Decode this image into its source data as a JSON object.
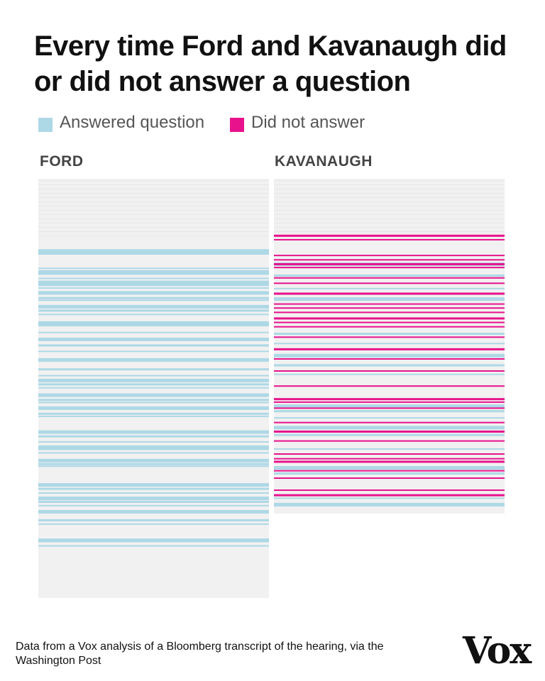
{
  "title": "Every time Ford and Kavanaugh did or did not answer a question",
  "legend": {
    "answered": "Answered question",
    "not_answered": "Did not answer"
  },
  "colors": {
    "answered": "#add8e6",
    "not_answered": "#e8128c",
    "panel_bg": "#f1f1f1",
    "filler": "#e2e2e2"
  },
  "panels": {
    "ford": "FORD",
    "kavanaugh": "KAVANAUGH"
  },
  "source": "Data from a Vox analysis of a Bloomberg transcript of the hearing, via the Washington Post",
  "logo": "Vox",
  "chart_data": [
    {
      "type": "heatmap",
      "title": "FORD",
      "series": [
        {
          "name": "Answered question",
          "values": []
        },
        {
          "name": "Did not answer",
          "values": []
        }
      ],
      "answered_rows": [
        0.168,
        0.176,
        0.212,
        0.218,
        0.224,
        0.236,
        0.243,
        0.251,
        0.259,
        0.268,
        0.282,
        0.288,
        0.301,
        0.312,
        0.322,
        0.34,
        0.347,
        0.365,
        0.379,
        0.395,
        0.41,
        0.428,
        0.452,
        0.468,
        0.477,
        0.488,
        0.497,
        0.512,
        0.525,
        0.532,
        0.543,
        0.558,
        0.565,
        0.6,
        0.612,
        0.626,
        0.636,
        0.642,
        0.652,
        0.668,
        0.678,
        0.684,
        0.726,
        0.737,
        0.748,
        0.758,
        0.768,
        0.778,
        0.79,
        0.812,
        0.822,
        0.858,
        0.862,
        0.874
      ],
      "not_answered_rows": []
    },
    {
      "type": "heatmap",
      "title": "KAVANAUGH",
      "series": [
        {
          "name": "Answered question",
          "values": []
        },
        {
          "name": "Did not answer",
          "values": []
        }
      ],
      "answered_rows": [
        0.25,
        0.286,
        0.326,
        0.354,
        0.46,
        0.49,
        0.523,
        0.554,
        0.582,
        0.674,
        0.691,
        0.712,
        0.738,
        0.762,
        0.805,
        0.858,
        0.877,
        0.952,
        0.968
      ],
      "not_answered_rows": [
        0.167,
        0.18,
        0.227,
        0.24,
        0.252,
        0.263,
        0.294,
        0.31,
        0.34,
        0.372,
        0.384,
        0.397,
        0.414,
        0.427,
        0.44,
        0.471,
        0.506,
        0.536,
        0.572,
        0.617,
        0.655,
        0.665,
        0.683,
        0.726,
        0.752,
        0.781,
        0.82,
        0.834,
        0.842,
        0.87,
        0.892,
        0.928,
        0.942
      ]
    }
  ]
}
